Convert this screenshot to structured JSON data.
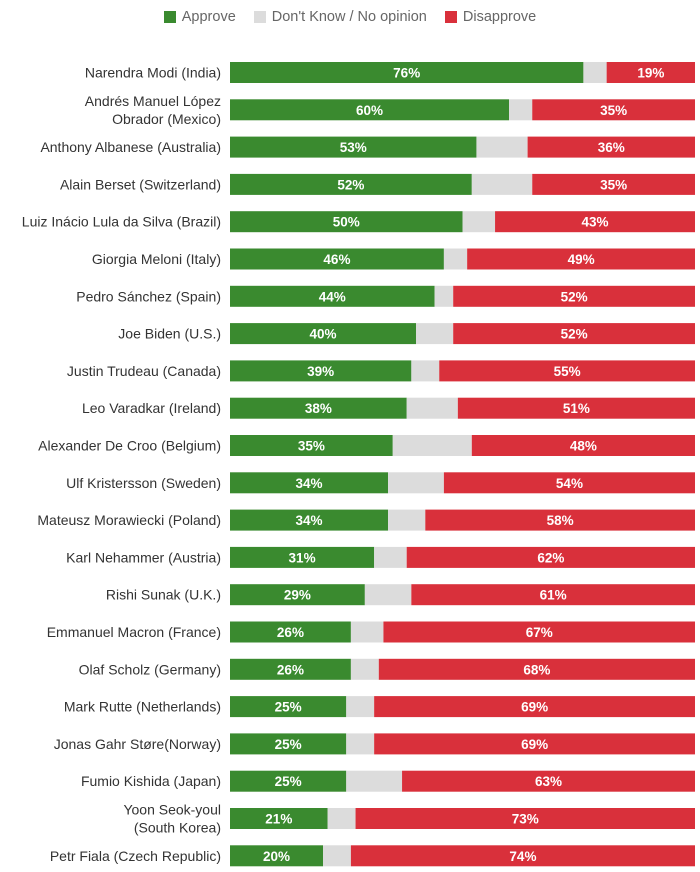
{
  "chart_data": {
    "type": "bar",
    "orientation": "horizontal",
    "stacked": true,
    "legend": {
      "position": "top-center",
      "entries": [
        "Approve",
        "Don't Know / No opinion",
        "Disapprove"
      ]
    },
    "colors": {
      "Approve": "#3a8a2f",
      "Don't Know / No opinion": "#dcdcdc",
      "Disapprove": "#d9303b"
    },
    "categories": [
      [
        "Narendra Modi (India)"
      ],
      [
        "Andrés Manuel López",
        "Obrador (Mexico)"
      ],
      [
        "Anthony Albanese (Australia)"
      ],
      [
        "Alain Berset (Switzerland)"
      ],
      [
        "Luiz Inácio Lula da Silva (Brazil)"
      ],
      [
        "Giorgia Meloni (Italy)"
      ],
      [
        "Pedro Sánchez (Spain)"
      ],
      [
        "Joe Biden (U.S.)"
      ],
      [
        "Justin Trudeau (Canada)"
      ],
      [
        "Leo Varadkar (Ireland)"
      ],
      [
        "Alexander De Croo (Belgium)"
      ],
      [
        "Ulf Kristersson (Sweden)"
      ],
      [
        "Mateusz Morawiecki (Poland)"
      ],
      [
        "Karl Nehammer (Austria)"
      ],
      [
        "Rishi Sunak (U.K.)"
      ],
      [
        "Emmanuel Macron (France)"
      ],
      [
        "Olaf Scholz (Germany)"
      ],
      [
        "Mark Rutte (Netherlands)"
      ],
      [
        "Jonas Gahr Støre(Norway)"
      ],
      [
        "Fumio Kishida (Japan)"
      ],
      [
        "Yoon Seok-youl",
        "(South Korea)"
      ],
      [
        "Petr Fiala (Czech Republic)"
      ]
    ],
    "series": [
      {
        "name": "Approve",
        "values": [
          76,
          60,
          53,
          52,
          50,
          46,
          44,
          40,
          39,
          38,
          35,
          34,
          34,
          31,
          29,
          26,
          26,
          25,
          25,
          25,
          21,
          20
        ]
      },
      {
        "name": "Don't Know / No opinion",
        "values": [
          5,
          5,
          11,
          13,
          7,
          5,
          4,
          8,
          6,
          11,
          17,
          12,
          8,
          7,
          10,
          7,
          6,
          6,
          6,
          12,
          6,
          6
        ]
      },
      {
        "name": "Disapprove",
        "values": [
          19,
          35,
          36,
          35,
          43,
          49,
          52,
          52,
          55,
          51,
          48,
          54,
          58,
          62,
          61,
          67,
          68,
          69,
          69,
          63,
          73,
          74
        ]
      }
    ],
    "value_format": "{v}%",
    "labeled_series": [
      "Approve",
      "Disapprove"
    ],
    "xlim": [
      0,
      100
    ],
    "grid": false,
    "title": "",
    "xlabel": "",
    "ylabel": ""
  }
}
